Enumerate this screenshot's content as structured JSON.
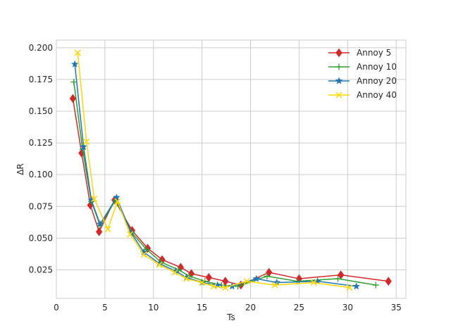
{
  "chart_data": {
    "type": "line",
    "title": "",
    "xlabel": "Ts",
    "ylabel": "ΔR",
    "xlim": [
      0,
      36
    ],
    "ylim": [
      0.0025,
      0.206
    ],
    "xticks": [
      0,
      5,
      10,
      15,
      20,
      25,
      30,
      35
    ],
    "yticks": [
      0.025,
      0.05,
      0.075,
      0.1,
      0.125,
      0.15,
      0.175,
      0.2
    ],
    "ytick_labels": [
      "0.025",
      "0.050",
      "0.075",
      "0.100",
      "0.125",
      "0.150",
      "0.175",
      "0.200"
    ],
    "grid": true,
    "legend_position": "top-right",
    "series": [
      {
        "name": "Annoy 5",
        "color": "#d62728",
        "marker": "diamond",
        "x": [
          1.7,
          2.6,
          3.5,
          4.4,
          6.0,
          7.8,
          9.4,
          10.9,
          12.8,
          13.9,
          15.7,
          17.4,
          19.0,
          21.9,
          25.0,
          29.3,
          34.2
        ],
        "y": [
          0.16,
          0.117,
          0.076,
          0.055,
          0.08,
          0.056,
          0.042,
          0.033,
          0.027,
          0.022,
          0.019,
          0.016,
          0.013,
          0.023,
          0.018,
          0.021,
          0.016
        ]
      },
      {
        "name": "Annoy 10",
        "color": "#2ca02c",
        "marker": "plus",
        "x": [
          1.8,
          2.7,
          3.6,
          4.5,
          6.1,
          7.8,
          9.3,
          10.8,
          12.6,
          13.7,
          15.3,
          17.0,
          18.7,
          21.7,
          24.8,
          29.0,
          32.9
        ],
        "y": [
          0.173,
          0.12,
          0.079,
          0.06,
          0.08,
          0.054,
          0.041,
          0.031,
          0.025,
          0.02,
          0.016,
          0.013,
          0.012,
          0.02,
          0.016,
          0.018,
          0.013
        ]
      },
      {
        "name": "Annoy 20",
        "color": "#1f77b4",
        "marker": "star",
        "x": [
          1.9,
          2.8,
          3.6,
          4.5,
          6.2,
          7.7,
          9.0,
          10.6,
          12.3,
          13.4,
          15.0,
          16.6,
          18.1,
          20.6,
          22.7,
          26.9,
          30.9
        ],
        "y": [
          0.187,
          0.122,
          0.08,
          0.061,
          0.082,
          0.054,
          0.039,
          0.03,
          0.024,
          0.019,
          0.015,
          0.013,
          0.012,
          0.018,
          0.015,
          0.016,
          0.012
        ]
      },
      {
        "name": "Annoy 40",
        "color": "#ffd700",
        "marker": "x",
        "x": [
          2.2,
          3.1,
          3.9,
          5.3,
          6.3,
          7.6,
          9.0,
          10.6,
          12.2,
          13.4,
          15.0,
          16.2,
          17.4,
          19.6,
          22.5,
          26.5,
          30.2
        ],
        "y": [
          0.196,
          0.126,
          0.081,
          0.057,
          0.079,
          0.053,
          0.037,
          0.029,
          0.023,
          0.018,
          0.015,
          0.012,
          0.011,
          0.016,
          0.013,
          0.015,
          0.011
        ]
      }
    ]
  }
}
